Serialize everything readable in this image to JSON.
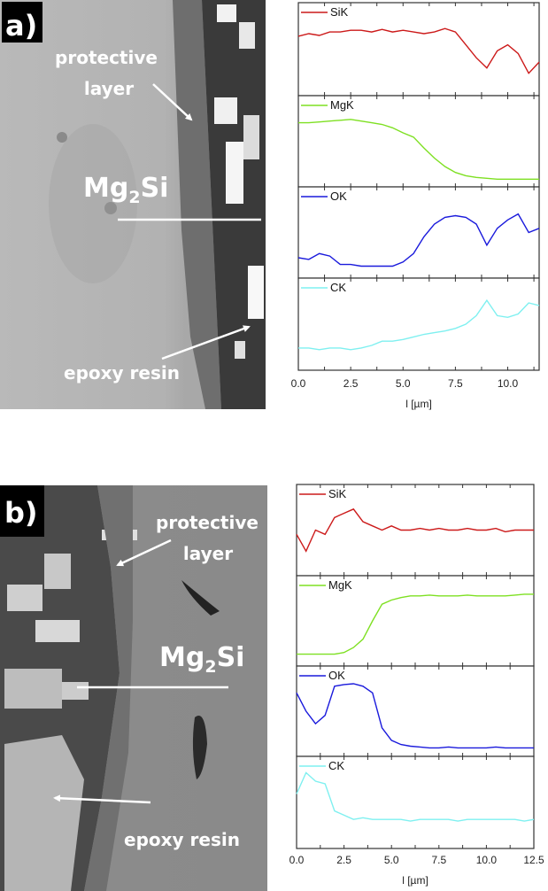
{
  "panels": [
    {
      "label": "a)",
      "annotations": {
        "protective_1": "protective",
        "protective_2": "layer",
        "phase_main": "Mg",
        "phase_sub": "2",
        "phase_end": "Si",
        "resin": "epoxy resin"
      }
    },
    {
      "label": "b)",
      "annotations": {
        "protective_1": "protective",
        "protective_2": "layer",
        "phase_main": "Mg",
        "phase_sub": "2",
        "phase_end": "Si",
        "resin": "epoxy resin"
      }
    }
  ],
  "chart_data": [
    {
      "type": "line",
      "panel": "a)",
      "xlabel": "l [µm]",
      "ylabel": "",
      "xlim": [
        0,
        11.5
      ],
      "xticks": [
        "0.0",
        "2.5",
        "5.0",
        "7.5",
        "10.0"
      ],
      "y_units": "relative intensity (no y-axis printed)",
      "x": [
        0,
        0.5,
        1,
        1.5,
        2,
        2.5,
        3,
        3.5,
        4,
        4.5,
        5,
        5.5,
        6,
        6.5,
        7,
        7.5,
        8,
        8.5,
        9,
        9.5,
        10,
        10.5,
        11,
        11.5
      ],
      "series": [
        {
          "name": "SiK",
          "color": "#cc1a1a",
          "values": [
            0.65,
            0.68,
            0.66,
            0.7,
            0.7,
            0.72,
            0.72,
            0.7,
            0.73,
            0.7,
            0.72,
            0.7,
            0.68,
            0.7,
            0.74,
            0.7,
            0.55,
            0.4,
            0.28,
            0.48,
            0.55,
            0.45,
            0.22,
            0.35
          ]
        },
        {
          "name": "MgK",
          "color": "#7ee022",
          "values": [
            0.72,
            0.72,
            0.73,
            0.74,
            0.75,
            0.76,
            0.74,
            0.72,
            0.7,
            0.66,
            0.6,
            0.55,
            0.42,
            0.3,
            0.2,
            0.13,
            0.09,
            0.07,
            0.06,
            0.05,
            0.05,
            0.05,
            0.05,
            0.05
          ]
        },
        {
          "name": "OK",
          "color": "#1a1adc",
          "values": [
            0.2,
            0.18,
            0.25,
            0.22,
            0.12,
            0.12,
            0.1,
            0.1,
            0.1,
            0.1,
            0.15,
            0.25,
            0.45,
            0.6,
            0.68,
            0.7,
            0.68,
            0.6,
            0.35,
            0.55,
            0.65,
            0.72,
            0.5,
            0.55
          ]
        },
        {
          "name": "CK",
          "color": "#7ff0f0",
          "values": [
            0.22,
            0.22,
            0.2,
            0.22,
            0.22,
            0.2,
            0.22,
            0.25,
            0.3,
            0.3,
            0.32,
            0.35,
            0.38,
            0.4,
            0.42,
            0.45,
            0.5,
            0.6,
            0.78,
            0.6,
            0.58,
            0.62,
            0.75,
            0.72
          ]
        }
      ]
    },
    {
      "type": "line",
      "panel": "b)",
      "xlabel": "l [µm]",
      "ylabel": "",
      "xlim": [
        0,
        12.5
      ],
      "xticks": [
        "0.0",
        "2.5",
        "5.0",
        "7.5",
        "10.0",
        "12.5"
      ],
      "y_units": "relative intensity (no y-axis printed)",
      "x": [
        0,
        0.5,
        1,
        1.5,
        2,
        2.5,
        3,
        3.5,
        4,
        4.5,
        5,
        5.5,
        6,
        6.5,
        7,
        7.5,
        8,
        8.5,
        9,
        9.5,
        10,
        10.5,
        11,
        11.5,
        12,
        12.5
      ],
      "series": [
        {
          "name": "SiK",
          "color": "#cc1a1a",
          "values": [
            0.45,
            0.25,
            0.5,
            0.45,
            0.65,
            0.7,
            0.75,
            0.6,
            0.55,
            0.5,
            0.55,
            0.5,
            0.5,
            0.52,
            0.5,
            0.52,
            0.5,
            0.5,
            0.52,
            0.5,
            0.5,
            0.52,
            0.48,
            0.5,
            0.5,
            0.5
          ]
        },
        {
          "name": "MgK",
          "color": "#7ee022",
          "values": [
            0.1,
            0.1,
            0.1,
            0.1,
            0.1,
            0.12,
            0.18,
            0.28,
            0.5,
            0.7,
            0.75,
            0.78,
            0.8,
            0.8,
            0.81,
            0.8,
            0.8,
            0.8,
            0.81,
            0.8,
            0.8,
            0.8,
            0.8,
            0.81,
            0.82,
            0.82
          ]
        },
        {
          "name": "OK",
          "color": "#1a1adc",
          "values": [
            0.72,
            0.5,
            0.35,
            0.45,
            0.8,
            0.82,
            0.83,
            0.8,
            0.72,
            0.3,
            0.15,
            0.1,
            0.08,
            0.07,
            0.06,
            0.06,
            0.07,
            0.06,
            0.06,
            0.06,
            0.06,
            0.07,
            0.06,
            0.06,
            0.06,
            0.06
          ]
        },
        {
          "name": "CK",
          "color": "#7ff0f0",
          "values": [
            0.6,
            0.85,
            0.75,
            0.72,
            0.4,
            0.35,
            0.3,
            0.32,
            0.3,
            0.3,
            0.3,
            0.3,
            0.28,
            0.3,
            0.3,
            0.3,
            0.3,
            0.28,
            0.3,
            0.3,
            0.3,
            0.3,
            0.3,
            0.3,
            0.28,
            0.3
          ]
        }
      ]
    }
  ]
}
